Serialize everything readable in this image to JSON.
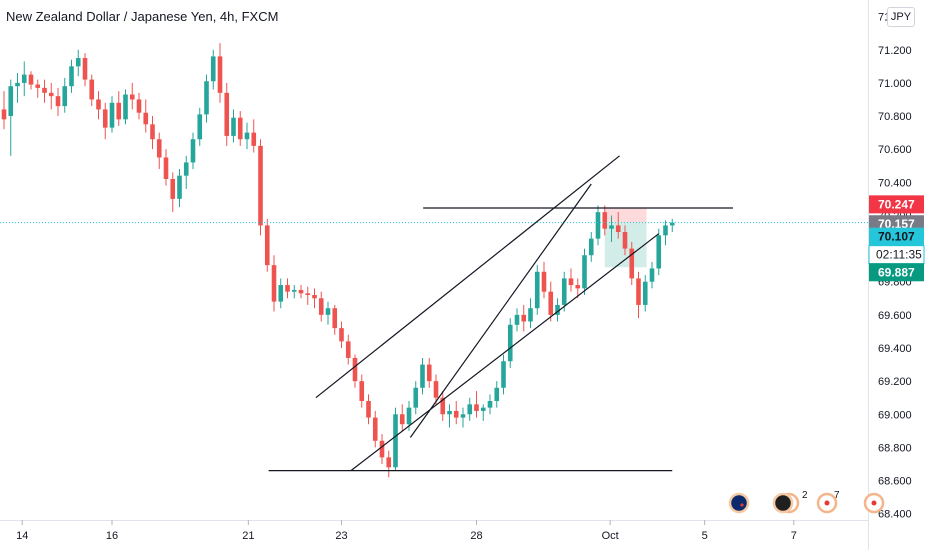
{
  "header": {
    "title": "New Zealand Dollar / Japanese Yen, 4h, FXCM",
    "currency_button": "JPY"
  },
  "chart_data": {
    "type": "candlestick",
    "symbol": "NZDJPY",
    "timeframe": "4h",
    "x_tick_labels": [
      "14",
      "16",
      "21",
      "23",
      "28",
      "Oct",
      "5",
      "7"
    ],
    "y_tick_labels": [
      "71.400",
      "71.200",
      "71.000",
      "70.800",
      "70.600",
      "70.400",
      "70.200",
      "70.000",
      "69.800",
      "69.600",
      "69.400",
      "69.200",
      "69.000",
      "68.800",
      "68.600",
      "68.400"
    ],
    "ylim": [
      68.38,
      71.44
    ],
    "price_labels": {
      "red": "70.247",
      "last": "70.157",
      "teal": "70.107",
      "countdown": "02:11:35",
      "green": "69.887"
    },
    "colors": {
      "up": "#26a69a",
      "down": "#ef5350",
      "last_price": "#26c6da",
      "green_label": "#089981",
      "red_label": "#f23645",
      "line": "#131722"
    },
    "candles": [
      [
        70.84,
        70.95,
        70.72,
        70.78
      ],
      [
        70.8,
        71.02,
        70.56,
        70.98
      ],
      [
        70.98,
        71.06,
        70.88,
        71.0
      ],
      [
        71.0,
        71.13,
        70.92,
        71.05
      ],
      [
        71.05,
        71.07,
        70.96,
        70.99
      ],
      [
        70.99,
        71.02,
        70.91,
        70.97
      ],
      [
        70.97,
        71.02,
        70.88,
        70.94
      ],
      [
        70.94,
        71.0,
        70.84,
        70.92
      ],
      [
        70.92,
        70.97,
        70.8,
        70.86
      ],
      [
        70.86,
        71.03,
        70.82,
        70.98
      ],
      [
        70.98,
        71.14,
        70.94,
        71.1
      ],
      [
        71.1,
        71.2,
        71.04,
        71.15
      ],
      [
        71.15,
        71.18,
        70.98,
        71.02
      ],
      [
        71.02,
        71.05,
        70.86,
        70.9
      ],
      [
        70.9,
        70.95,
        70.78,
        70.84
      ],
      [
        70.84,
        70.88,
        70.66,
        70.73
      ],
      [
        70.73,
        70.92,
        70.7,
        70.88
      ],
      [
        70.88,
        70.95,
        70.74,
        70.78
      ],
      [
        70.78,
        70.96,
        70.75,
        70.93
      ],
      [
        70.93,
        71.0,
        70.84,
        70.9
      ],
      [
        70.9,
        70.94,
        70.78,
        70.82
      ],
      [
        70.82,
        70.9,
        70.7,
        70.75
      ],
      [
        70.75,
        70.8,
        70.6,
        70.66
      ],
      [
        70.66,
        70.7,
        70.48,
        70.55
      ],
      [
        70.55,
        70.6,
        70.38,
        70.42
      ],
      [
        70.42,
        70.46,
        70.22,
        70.3
      ],
      [
        70.3,
        70.48,
        70.25,
        70.44
      ],
      [
        70.44,
        70.56,
        70.36,
        70.52
      ],
      [
        70.52,
        70.7,
        70.48,
        70.66
      ],
      [
        70.66,
        70.85,
        70.62,
        70.81
      ],
      [
        70.81,
        71.05,
        70.76,
        71.01
      ],
      [
        71.01,
        71.2,
        70.96,
        71.16
      ],
      [
        71.16,
        71.24,
        70.88,
        70.94
      ],
      [
        70.94,
        71.0,
        70.62,
        70.68
      ],
      [
        70.68,
        70.84,
        70.64,
        70.79
      ],
      [
        70.79,
        70.83,
        70.62,
        70.66
      ],
      [
        70.66,
        70.76,
        70.6,
        70.7
      ],
      [
        70.7,
        70.78,
        70.58,
        70.62
      ],
      [
        70.62,
        70.66,
        70.08,
        70.14
      ],
      [
        70.14,
        70.18,
        69.86,
        69.9
      ],
      [
        69.9,
        69.96,
        69.62,
        69.68
      ],
      [
        69.68,
        69.82,
        69.64,
        69.78
      ],
      [
        69.78,
        69.82,
        69.7,
        69.74
      ],
      [
        69.74,
        69.78,
        69.7,
        69.75
      ],
      [
        69.75,
        69.78,
        69.7,
        69.73
      ],
      [
        69.73,
        69.77,
        69.66,
        69.72
      ],
      [
        69.72,
        69.76,
        69.64,
        69.7
      ],
      [
        69.7,
        69.74,
        69.56,
        69.6
      ],
      [
        69.6,
        69.68,
        69.54,
        69.64
      ],
      [
        69.64,
        69.66,
        69.48,
        69.52
      ],
      [
        69.52,
        69.56,
        69.4,
        69.44
      ],
      [
        69.44,
        69.48,
        69.3,
        69.34
      ],
      [
        69.34,
        69.36,
        69.16,
        69.2
      ],
      [
        69.2,
        69.24,
        69.04,
        69.08
      ],
      [
        69.08,
        69.12,
        68.94,
        68.98
      ],
      [
        68.98,
        69.02,
        68.8,
        68.84
      ],
      [
        68.84,
        68.88,
        68.7,
        68.74
      ],
      [
        68.74,
        68.78,
        68.62,
        68.68
      ],
      [
        68.68,
        69.04,
        68.66,
        69.0
      ],
      [
        69.0,
        69.06,
        68.9,
        68.94
      ],
      [
        68.94,
        69.08,
        68.9,
        69.04
      ],
      [
        69.04,
        69.2,
        69.0,
        69.16
      ],
      [
        69.16,
        69.34,
        69.12,
        69.3
      ],
      [
        69.3,
        69.34,
        69.16,
        69.2
      ],
      [
        69.2,
        69.24,
        69.06,
        69.1
      ],
      [
        69.1,
        69.14,
        68.96,
        69.0
      ],
      [
        69.0,
        69.06,
        68.92,
        69.02
      ],
      [
        69.02,
        69.08,
        68.94,
        68.98
      ],
      [
        68.98,
        69.04,
        68.92,
        69.0
      ],
      [
        69.0,
        69.1,
        68.96,
        69.06
      ],
      [
        69.06,
        69.14,
        68.98,
        69.02
      ],
      [
        69.02,
        69.06,
        68.96,
        69.04
      ],
      [
        69.04,
        69.12,
        69.0,
        69.08
      ],
      [
        69.08,
        69.2,
        69.04,
        69.16
      ],
      [
        69.16,
        69.36,
        69.12,
        69.32
      ],
      [
        69.32,
        69.58,
        69.28,
        69.54
      ],
      [
        69.54,
        69.64,
        69.5,
        69.6
      ],
      [
        69.6,
        69.66,
        69.5,
        69.56
      ],
      [
        69.56,
        69.7,
        69.52,
        69.64
      ],
      [
        69.64,
        69.9,
        69.6,
        69.86
      ],
      [
        69.86,
        69.92,
        69.7,
        69.74
      ],
      [
        69.74,
        69.8,
        69.56,
        69.6
      ],
      [
        69.6,
        69.7,
        69.56,
        69.66
      ],
      [
        69.66,
        69.86,
        69.62,
        69.82
      ],
      [
        69.82,
        69.88,
        69.74,
        69.78
      ],
      [
        69.78,
        69.82,
        69.7,
        69.76
      ],
      [
        69.76,
        70.0,
        69.72,
        69.96
      ],
      [
        69.96,
        70.1,
        69.92,
        70.06
      ],
      [
        70.06,
        70.26,
        70.02,
        70.22
      ],
      [
        70.22,
        70.26,
        70.08,
        70.12
      ],
      [
        70.12,
        70.2,
        70.04,
        70.14
      ],
      [
        70.14,
        70.22,
        70.06,
        70.1
      ],
      [
        70.1,
        70.14,
        69.96,
        70.0
      ],
      [
        70.0,
        70.04,
        69.78,
        69.82
      ],
      [
        69.82,
        69.86,
        69.58,
        69.66
      ],
      [
        69.66,
        69.84,
        69.62,
        69.8
      ],
      [
        69.8,
        69.92,
        69.76,
        69.88
      ],
      [
        69.88,
        70.12,
        69.84,
        70.08
      ],
      [
        70.08,
        70.17,
        70.02,
        70.14
      ],
      [
        70.14,
        70.18,
        70.1,
        70.157
      ]
    ],
    "trend_lines": [
      {
        "name": "channel-upper-line",
        "x": [
          46.2,
          91.2
        ],
        "y": [
          69.1,
          70.56
        ]
      },
      {
        "name": "channel-lower-line",
        "x": [
          51.4,
          97.0
        ],
        "y": [
          68.66,
          70.09
        ]
      },
      {
        "name": "steep-upper-line",
        "x": [
          60.2,
          87.0
        ],
        "y": [
          68.86,
          70.39
        ]
      },
      {
        "name": "support-line",
        "x": [
          39.2,
          99.0
        ],
        "y": [
          68.66,
          68.66
        ]
      },
      {
        "name": "resistance-line",
        "x": [
          62.1,
          108.0
        ],
        "y": [
          70.245,
          70.245
        ]
      }
    ],
    "position_zones": {
      "loss": {
        "x": [
          89.0,
          95.2
        ],
        "y": [
          70.157,
          70.245
        ]
      },
      "profit": {
        "x": [
          89.0,
          95.2
        ],
        "y": [
          69.887,
          70.157
        ]
      }
    }
  }
}
